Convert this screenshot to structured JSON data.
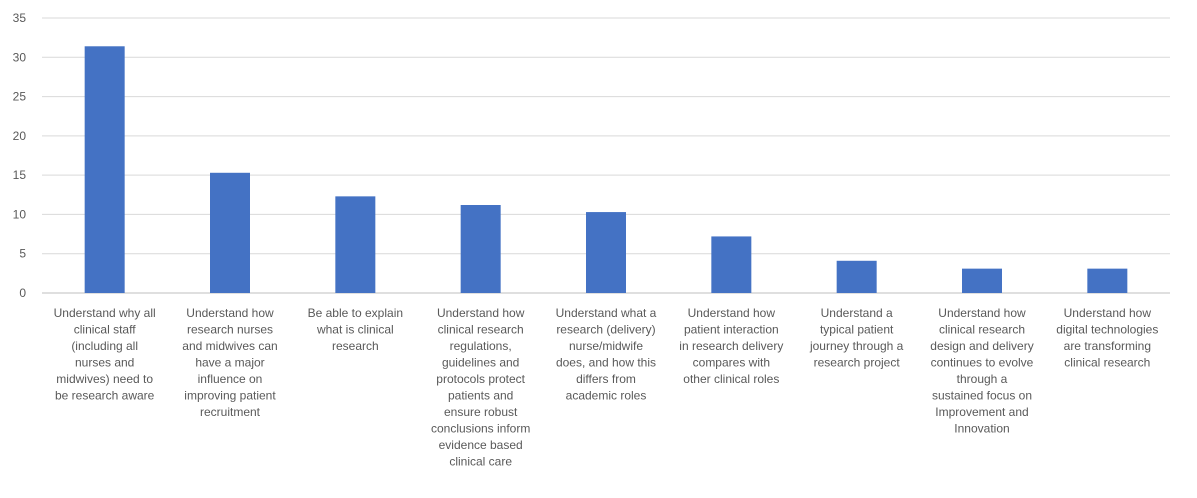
{
  "chart_data": {
    "type": "bar",
    "title": "",
    "xlabel": "",
    "ylabel": "",
    "ylim": [
      0,
      35
    ],
    "yticks": [
      0,
      5,
      10,
      15,
      20,
      25,
      30,
      35
    ],
    "grid": true,
    "legend": "none",
    "bar_color": "#4472C4",
    "categories": [
      "Understand why all clinical staff (including all nurses and midwives) need to be research aware",
      "Understand how research nurses and midwives can have a major influence on improving patient recruitment",
      "Be able to explain what is clinical research",
      "Understand how clinical research regulations, guidelines and protocols protect patients and ensure robust conclusions inform evidence based clinical care",
      "Understand what a research (delivery) nurse/midwife does, and how this differs from academic roles",
      "Understand how patient interaction in research delivery compares with other clinical roles",
      "Understand a typical patient journey through a research project",
      "Understand how clinical research design and delivery continues to evolve through a sustained focus on Improvement and Innovation",
      "Understand how digital technologies are transforming clinical research"
    ],
    "category_lines": [
      [
        "Understand why all",
        "clinical staff",
        "(including all",
        "nurses and",
        "midwives) need to",
        "be research aware"
      ],
      [
        "Understand how",
        "research nurses",
        "and midwives can",
        "have a major",
        "influence on",
        "improving patient",
        "recruitment"
      ],
      [
        "Be able to explain",
        "what is clinical",
        "research"
      ],
      [
        "Understand how",
        "clinical research",
        "regulations,",
        "guidelines and",
        "protocols protect",
        "patients and",
        "ensure robust",
        "conclusions inform",
        "evidence based",
        "clinical care"
      ],
      [
        "Understand what a",
        "research (delivery)",
        "nurse/midwife",
        "does, and how this",
        "differs from",
        "academic roles"
      ],
      [
        "Understand how",
        "patient interaction",
        "in research delivery",
        "compares with",
        "other clinical roles"
      ],
      [
        "Understand a",
        "typical patient",
        "journey through a",
        "research project"
      ],
      [
        "Understand how",
        "clinical research",
        "design and delivery",
        "continues to evolve",
        "through a",
        "sustained focus on",
        "Improvement and",
        "Innovation"
      ],
      [
        "Understand how",
        "digital technologies",
        "are transforming",
        "clinical research"
      ]
    ],
    "values": [
      31.4,
      15.3,
      12.3,
      11.2,
      10.3,
      7.2,
      4.1,
      3.1,
      3.1
    ]
  }
}
